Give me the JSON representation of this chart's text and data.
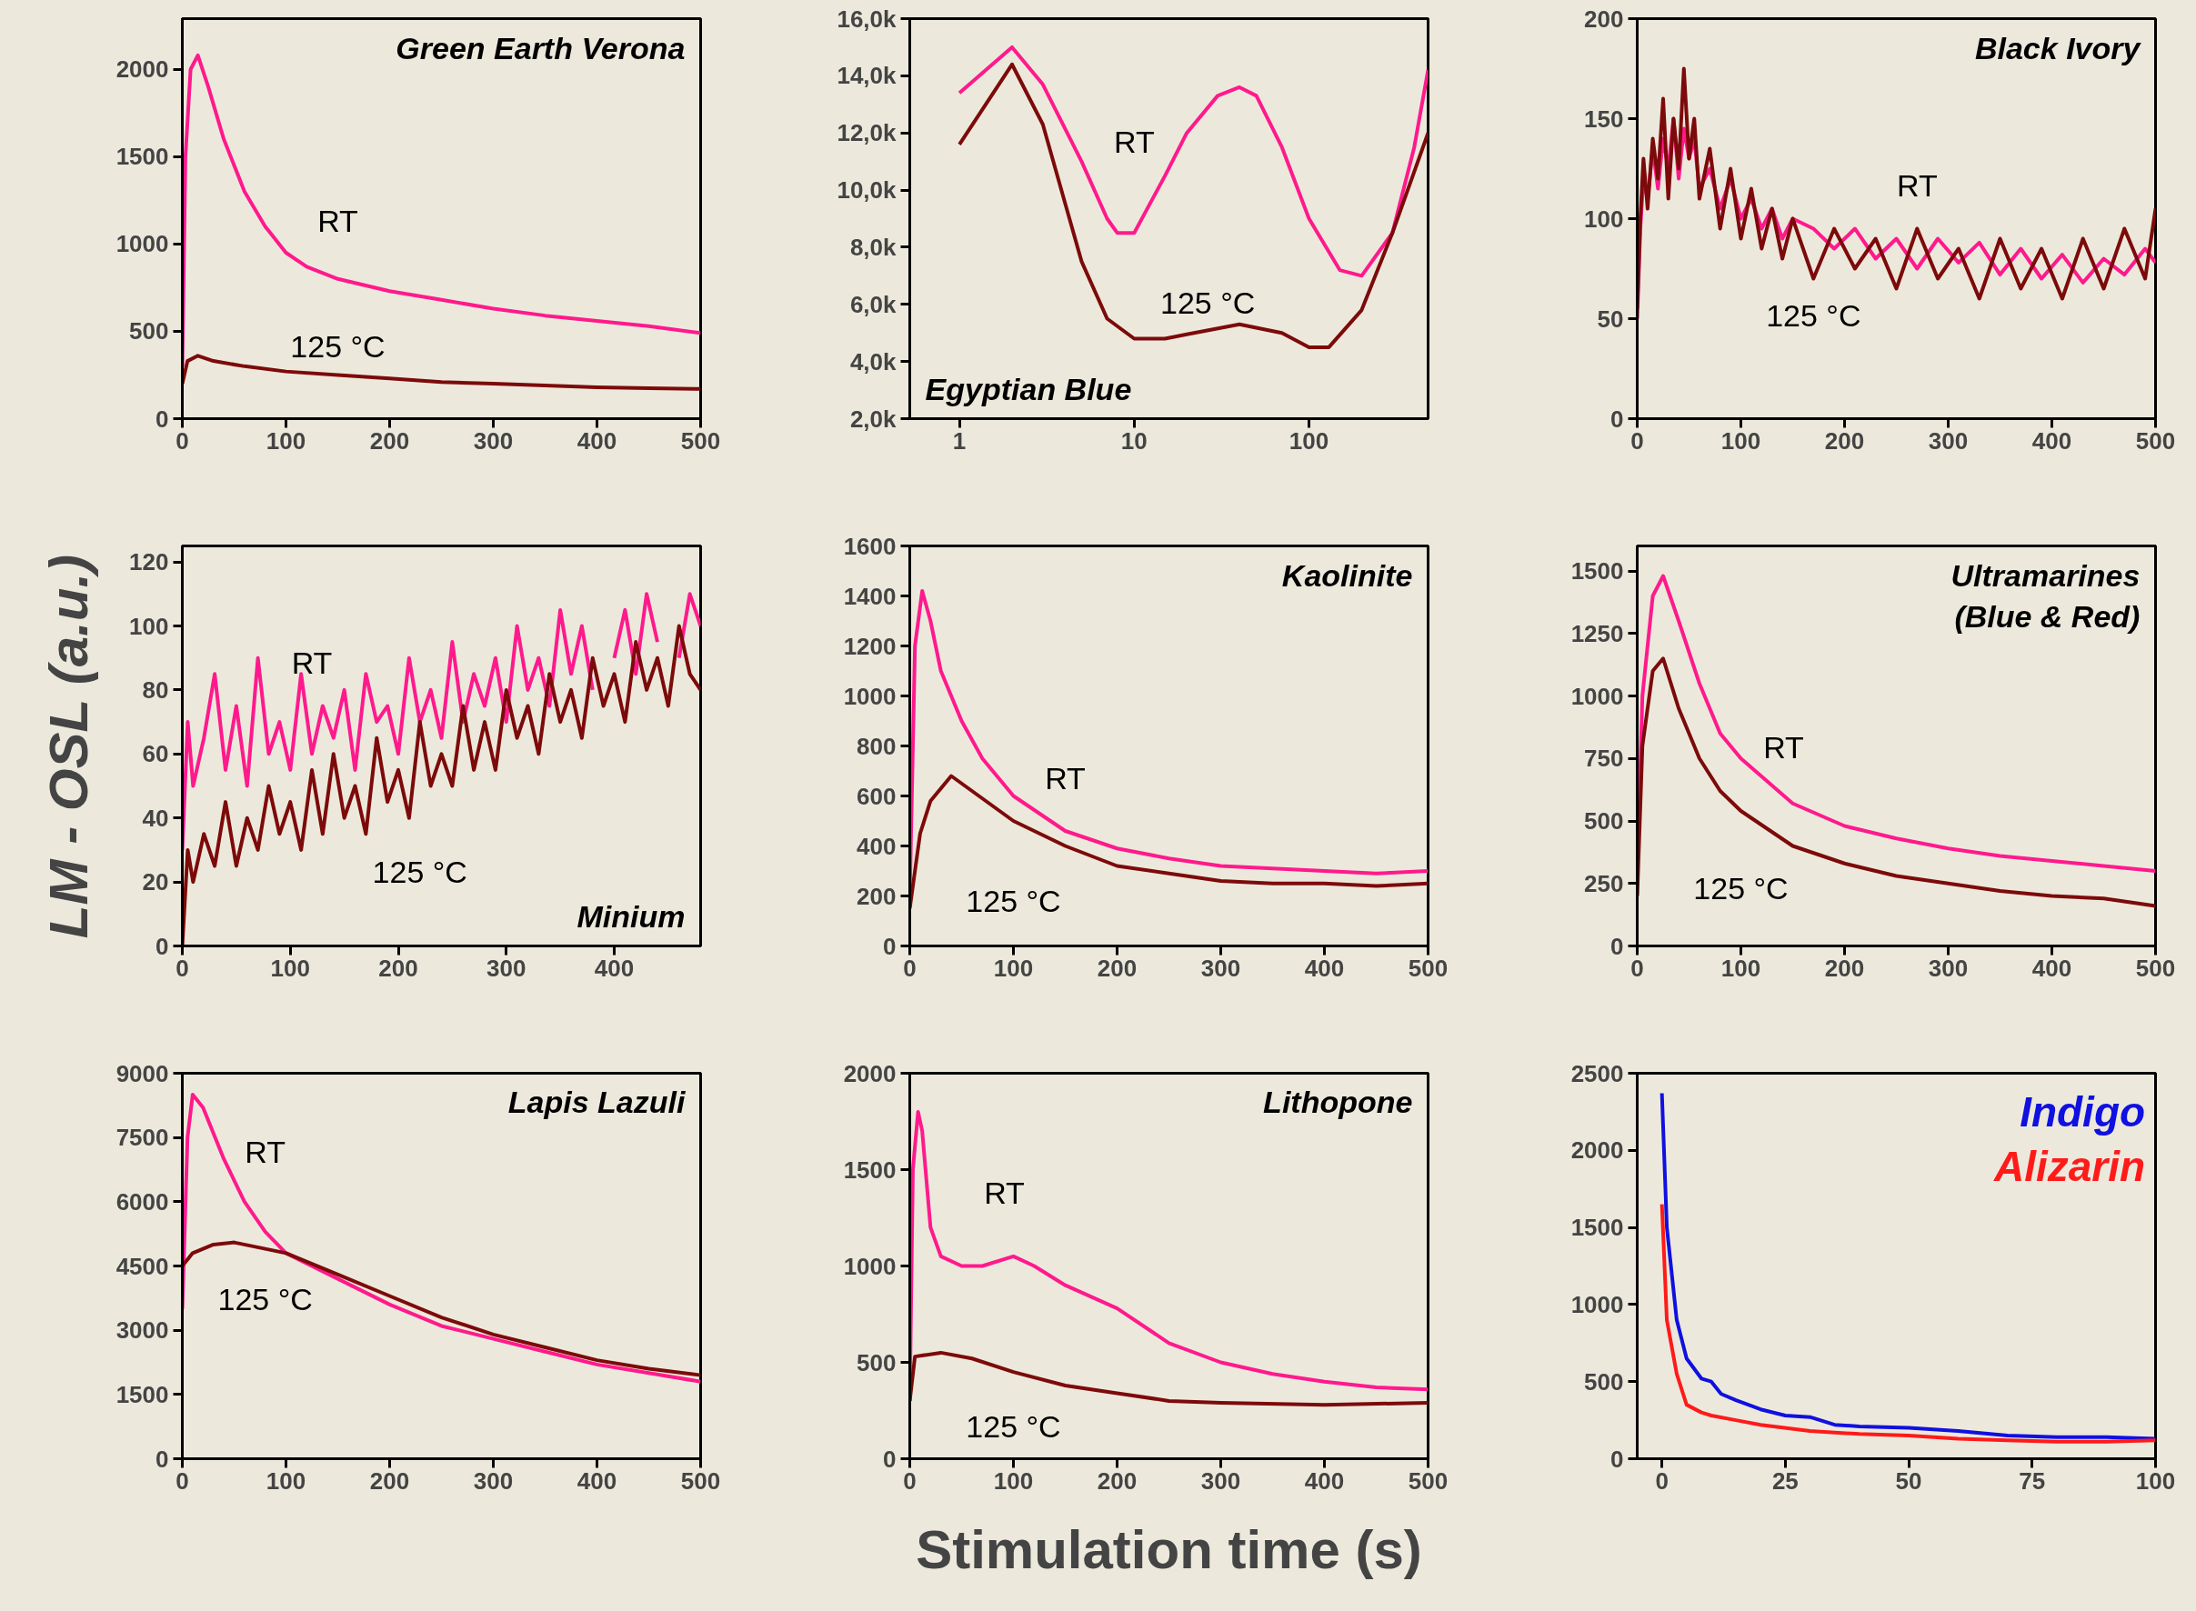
{
  "chart_data": [
    {
      "type": "line",
      "title": "Green Earth Verona",
      "xlim": [
        0,
        500
      ],
      "ylim": [
        0,
        2290
      ],
      "xticks": [
        0,
        100,
        200,
        300,
        400,
        500
      ],
      "yticks": [
        0,
        500,
        1000,
        1500,
        2000
      ],
      "series": [
        {
          "name": "RT",
          "color": "#ff1a8c",
          "x": [
            0,
            3,
            8,
            15,
            25,
            40,
            60,
            80,
            100,
            120,
            150,
            200,
            250,
            300,
            350,
            400,
            450,
            500
          ],
          "values": [
            300,
            1500,
            2000,
            2080,
            1900,
            1600,
            1300,
            1100,
            950,
            870,
            800,
            730,
            680,
            630,
            590,
            560,
            530,
            490
          ]
        },
        {
          "name": "125 °C",
          "color": "#7d0a0a",
          "x": [
            0,
            5,
            15,
            30,
            60,
            100,
            150,
            200,
            250,
            300,
            350,
            400,
            450,
            500
          ],
          "values": [
            200,
            330,
            360,
            330,
            300,
            270,
            250,
            230,
            210,
            200,
            190,
            180,
            175,
            170
          ]
        }
      ]
    },
    {
      "type": "line",
      "title": "Egyptian Blue",
      "log": "x",
      "xlim": [
        0.52,
        480
      ],
      "ylim": [
        2000,
        16000
      ],
      "xticks": [
        1,
        10,
        100
      ],
      "yticks": [
        {
          "value": 2000,
          "label": "2,0k"
        },
        {
          "value": 4000,
          "label": "4,0k"
        },
        {
          "value": 6000,
          "label": "6,0k"
        },
        {
          "value": 8000,
          "label": "8,0k"
        },
        {
          "value": 10000,
          "label": "10,0k"
        },
        {
          "value": 12000,
          "label": "12,0k"
        },
        {
          "value": 14000,
          "label": "14,0k"
        },
        {
          "value": 16000,
          "label": "16,0k"
        }
      ],
      "series": [
        {
          "name": "RT",
          "color": "#ff1a8c",
          "x": [
            1,
            2,
            3,
            5,
            7,
            8,
            10,
            15,
            20,
            30,
            40,
            50,
            70,
            100,
            150,
            200,
            300,
            400,
            480
          ],
          "values": [
            13400,
            15000,
            13700,
            11000,
            9000,
            8500,
            8500,
            10500,
            12000,
            13300,
            13600,
            13300,
            11500,
            9000,
            7200,
            7000,
            8500,
            11500,
            14200
          ]
        },
        {
          "name": "125 °C",
          "color": "#7d0a0a",
          "x": [
            1,
            2,
            3,
            5,
            7,
            10,
            15,
            20,
            40,
            70,
            100,
            130,
            200,
            300,
            480
          ],
          "values": [
            11600,
            14400,
            12300,
            7500,
            5500,
            4800,
            4800,
            4950,
            5300,
            5000,
            4500,
            4500,
            5800,
            8500,
            12000
          ]
        }
      ]
    },
    {
      "type": "line",
      "title": "Black Ivory",
      "xlim": [
        0,
        500
      ],
      "ylim": [
        0,
        200
      ],
      "xticks": [
        0,
        100,
        200,
        300,
        400,
        500
      ],
      "yticks": [
        0,
        50,
        100,
        150,
        200
      ],
      "series": [
        {
          "name": "RT",
          "color": "#ff1a8c",
          "x": [
            0,
            3,
            6,
            10,
            15,
            20,
            25,
            30,
            35,
            40,
            45,
            50,
            55,
            60,
            70,
            80,
            90,
            100,
            110,
            120,
            130,
            140,
            150,
            170,
            190,
            210,
            230,
            250,
            270,
            290,
            310,
            330,
            350,
            370,
            390,
            410,
            430,
            450,
            470,
            490,
            500
          ],
          "values": [
            50,
            95,
            120,
            110,
            135,
            115,
            140,
            125,
            150,
            120,
            145,
            130,
            140,
            115,
            125,
            105,
            120,
            100,
            110,
            95,
            105,
            90,
            100,
            95,
            85,
            95,
            80,
            90,
            75,
            90,
            78,
            88,
            72,
            85,
            70,
            82,
            68,
            80,
            72,
            85,
            78
          ]
        },
        {
          "name": "125 °C",
          "color": "#7d0a0a",
          "x": [
            0,
            3,
            6,
            10,
            15,
            20,
            25,
            30,
            35,
            40,
            45,
            50,
            55,
            60,
            70,
            80,
            90,
            100,
            110,
            120,
            130,
            140,
            150,
            170,
            190,
            210,
            230,
            250,
            270,
            290,
            310,
            330,
            350,
            370,
            390,
            410,
            430,
            450,
            470,
            490,
            500
          ],
          "values": [
            55,
            100,
            130,
            105,
            140,
            120,
            160,
            110,
            150,
            125,
            175,
            130,
            150,
            110,
            135,
            95,
            125,
            90,
            115,
            85,
            105,
            80,
            100,
            70,
            95,
            75,
            90,
            65,
            95,
            70,
            85,
            60,
            90,
            65,
            85,
            60,
            90,
            65,
            95,
            70,
            105
          ]
        }
      ]
    },
    {
      "type": "line",
      "title": "Minium",
      "ylabel": "LM - OSL (a.u.)",
      "xlim": [
        0,
        480
      ],
      "ylim": [
        0,
        125
      ],
      "xticks": [
        0,
        100,
        200,
        300,
        400
      ],
      "yticks": [
        0,
        20,
        40,
        60,
        80,
        100,
        120
      ],
      "series": [
        {
          "name": "RT",
          "color": "#ff1a8c",
          "x": [
            0,
            5,
            10,
            20,
            30,
            40,
            50,
            60,
            70,
            80,
            90,
            100,
            110,
            120,
            130,
            140,
            150,
            160,
            170,
            180,
            190,
            200,
            210,
            220,
            230,
            240,
            250,
            260,
            270,
            280,
            290,
            300,
            310,
            320,
            330,
            340,
            350,
            360,
            370,
            380,
            390,
            400,
            410,
            420,
            430,
            440,
            450,
            460,
            470,
            480
          ],
          "values": [
            30,
            70,
            50,
            65,
            85,
            55,
            75,
            50,
            90,
            60,
            70,
            55,
            85,
            60,
            75,
            65,
            80,
            55,
            85,
            70,
            75,
            60,
            90,
            70,
            80,
            65,
            95,
            70,
            85,
            75,
            90,
            70,
            100,
            80,
            90,
            75,
            105,
            85,
            100,
            80,
            null,
            90,
            105,
            85,
            110,
            95,
            null,
            90,
            110,
            100
          ]
        },
        {
          "name": "125 °C",
          "color": "#7d0a0a",
          "x": [
            0,
            5,
            10,
            20,
            30,
            40,
            50,
            60,
            70,
            80,
            90,
            100,
            110,
            120,
            130,
            140,
            150,
            160,
            170,
            180,
            190,
            200,
            210,
            220,
            230,
            240,
            250,
            260,
            270,
            280,
            290,
            300,
            310,
            320,
            330,
            340,
            350,
            360,
            370,
            380,
            390,
            400,
            410,
            420,
            430,
            440,
            450,
            460,
            470,
            480
          ],
          "values": [
            0,
            30,
            20,
            35,
            25,
            45,
            25,
            40,
            30,
            50,
            35,
            45,
            30,
            55,
            35,
            60,
            40,
            50,
            35,
            65,
            45,
            55,
            40,
            70,
            50,
            60,
            50,
            75,
            55,
            70,
            55,
            80,
            65,
            75,
            60,
            85,
            70,
            80,
            65,
            90,
            75,
            85,
            70,
            95,
            80,
            90,
            75,
            100,
            85,
            80
          ]
        }
      ]
    },
    {
      "type": "line",
      "title": "Kaolinite",
      "xlim": [
        0,
        500
      ],
      "ylim": [
        0,
        1600
      ],
      "xticks": [
        0,
        100,
        200,
        300,
        400,
        500
      ],
      "yticks": [
        0,
        200,
        400,
        600,
        800,
        1000,
        1200,
        1400,
        1600
      ],
      "series": [
        {
          "name": "RT",
          "color": "#ff1a8c",
          "x": [
            0,
            5,
            12,
            20,
            30,
            50,
            70,
            100,
            150,
            200,
            250,
            300,
            350,
            400,
            450,
            500
          ],
          "values": [
            200,
            1200,
            1420,
            1300,
            1100,
            900,
            750,
            600,
            460,
            390,
            350,
            320,
            310,
            300,
            290,
            300
          ]
        },
        {
          "name": "125 °C",
          "color": "#7d0a0a",
          "x": [
            0,
            10,
            20,
            40,
            60,
            80,
            100,
            150,
            200,
            250,
            300,
            350,
            400,
            450,
            500
          ],
          "values": [
            150,
            450,
            580,
            680,
            620,
            560,
            500,
            400,
            320,
            290,
            260,
            250,
            250,
            240,
            250
          ]
        }
      ]
    },
    {
      "type": "line",
      "title": "Ultramarines\n(Blue & Red)",
      "xlim": [
        0,
        500
      ],
      "ylim": [
        0,
        1600
      ],
      "xticks": [
        0,
        100,
        200,
        300,
        400,
        500
      ],
      "yticks": [
        0,
        250,
        500,
        750,
        1000,
        1250,
        1500
      ],
      "series": [
        {
          "name": "RT",
          "color": "#ff1a8c",
          "x": [
            0,
            5,
            15,
            25,
            40,
            60,
            80,
            100,
            150,
            200,
            250,
            300,
            350,
            400,
            450,
            500
          ],
          "values": [
            300,
            1000,
            1400,
            1480,
            1300,
            1050,
            850,
            750,
            570,
            480,
            430,
            390,
            360,
            340,
            320,
            300
          ]
        },
        {
          "name": "125 °C",
          "color": "#7d0a0a",
          "x": [
            0,
            5,
            15,
            25,
            40,
            60,
            80,
            100,
            150,
            200,
            250,
            300,
            350,
            400,
            450,
            500
          ],
          "values": [
            200,
            800,
            1100,
            1150,
            950,
            750,
            620,
            540,
            400,
            330,
            280,
            250,
            220,
            200,
            190,
            160
          ]
        }
      ]
    },
    {
      "type": "line",
      "title": "Lapis Lazuli",
      "xlim": [
        0,
        500
      ],
      "ylim": [
        0,
        9000
      ],
      "xticks": [
        0,
        100,
        200,
        300,
        400,
        500
      ],
      "yticks": [
        0,
        1500,
        3000,
        4500,
        6000,
        7500,
        9000
      ],
      "series": [
        {
          "name": "RT",
          "color": "#ff1a8c",
          "x": [
            0,
            5,
            10,
            20,
            40,
            60,
            80,
            100,
            150,
            200,
            250,
            300,
            350,
            400,
            450,
            500
          ],
          "values": [
            3500,
            7500,
            8500,
            8200,
            7000,
            6000,
            5300,
            4800,
            4200,
            3600,
            3100,
            2800,
            2500,
            2200,
            2000,
            1800
          ]
        },
        {
          "name": "125 °C",
          "color": "#7d0a0a",
          "x": [
            0,
            10,
            30,
            50,
            80,
            100,
            150,
            200,
            250,
            300,
            350,
            400,
            450,
            500
          ],
          "values": [
            4500,
            4800,
            5000,
            5050,
            4900,
            4800,
            4300,
            3800,
            3300,
            2900,
            2600,
            2300,
            2100,
            1950
          ]
        }
      ]
    },
    {
      "type": "line",
      "title": "Lithopone",
      "xlabel": "Stimulation time (s)",
      "xlim": [
        0,
        500
      ],
      "ylim": [
        0,
        2000
      ],
      "xticks": [
        0,
        100,
        200,
        300,
        400,
        500
      ],
      "yticks": [
        0,
        500,
        1000,
        1500,
        2000
      ],
      "series": [
        {
          "name": "RT",
          "color": "#ff1a8c",
          "x": [
            0,
            3,
            8,
            12,
            20,
            30,
            50,
            70,
            100,
            120,
            150,
            200,
            250,
            300,
            350,
            400,
            450,
            500
          ],
          "values": [
            300,
            1500,
            1800,
            1700,
            1200,
            1050,
            1000,
            1000,
            1050,
            1000,
            900,
            780,
            600,
            500,
            440,
            400,
            370,
            360
          ]
        },
        {
          "name": "125 °C",
          "color": "#7d0a0a",
          "x": [
            0,
            5,
            30,
            60,
            100,
            150,
            200,
            250,
            300,
            400,
            500
          ],
          "values": [
            300,
            530,
            550,
            520,
            450,
            380,
            340,
            300,
            290,
            280,
            290
          ]
        }
      ]
    },
    {
      "type": "line",
      "legend": "top right",
      "xlim": [
        -5,
        100
      ],
      "ylim": [
        0,
        2500
      ],
      "xticks": [
        0,
        25,
        50,
        75,
        100
      ],
      "yticks": [
        0,
        500,
        1000,
        1500,
        2000,
        2500
      ],
      "series": [
        {
          "name": "Indigo",
          "color": "#1010e0",
          "x": [
            0,
            1,
            3,
            5,
            8,
            10,
            12,
            15,
            20,
            25,
            30,
            35,
            40,
            50,
            60,
            70,
            80,
            90,
            100
          ],
          "values": [
            2370,
            1500,
            900,
            650,
            520,
            500,
            420,
            380,
            320,
            280,
            270,
            220,
            210,
            200,
            180,
            150,
            140,
            140,
            130
          ]
        },
        {
          "name": "Alizarin",
          "color": "#ff1a1a",
          "x": [
            0,
            1,
            3,
            5,
            8,
            10,
            15,
            20,
            30,
            40,
            50,
            60,
            70,
            80,
            90,
            100
          ],
          "values": [
            1650,
            900,
            550,
            350,
            300,
            280,
            250,
            220,
            180,
            160,
            150,
            130,
            120,
            110,
            110,
            120
          ]
        }
      ]
    }
  ]
}
